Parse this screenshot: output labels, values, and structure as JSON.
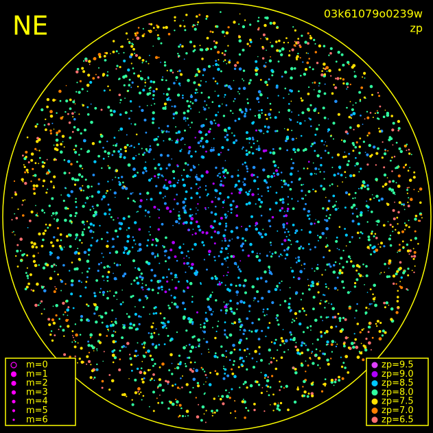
{
  "header": {
    "direction": "NE",
    "frame_id": "03k61079o0239w",
    "mode": "zp"
  },
  "magnitude_legend": {
    "items": [
      "m=0",
      "m=1",
      "m=2",
      "m=3",
      "m=4",
      "m=5",
      "m=6"
    ],
    "color": "#ff00ff"
  },
  "zp_legend": {
    "items": [
      {
        "label": "zp=9.5",
        "color": "#e040ff"
      },
      {
        "label": "zp=9.0",
        "color": "#b000ff"
      },
      {
        "label": "zp=8.5",
        "color": "#00c8ff"
      },
      {
        "label": "zp=8.0",
        "color": "#30ffa0"
      },
      {
        "label": "zp=7.5",
        "color": "#ffe000"
      },
      {
        "label": "zp=7.0",
        "color": "#ff8000"
      },
      {
        "label": "zp=6.5",
        "color": "#ff7070"
      }
    ]
  }
}
